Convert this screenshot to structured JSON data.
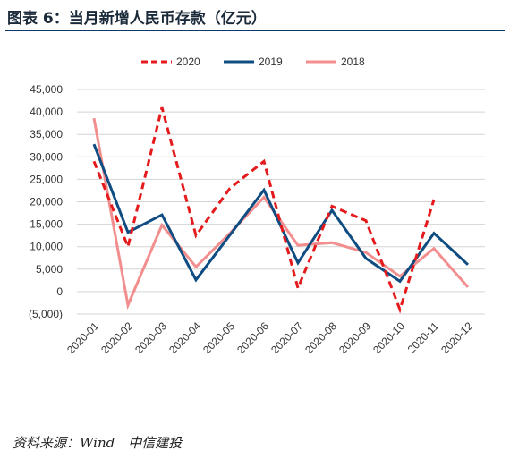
{
  "header": {
    "title": "图表 6：当月新增人民币存款（亿元）"
  },
  "footer": {
    "source": "资料来源：Wind　中信建投"
  },
  "chart_data": {
    "type": "line",
    "categories": [
      "2020-01",
      "2020-02",
      "2020-03",
      "2020-04",
      "2020-05",
      "2020-06",
      "2020-07",
      "2020-08",
      "2020-09",
      "2020-10",
      "2020-11",
      "2020-12"
    ],
    "ylim": [
      -5000,
      45000
    ],
    "yticks": [
      -5000,
      0,
      5000,
      10000,
      15000,
      20000,
      25000,
      30000,
      35000,
      40000,
      45000
    ],
    "ytick_labels": [
      "(5,000)",
      "0",
      "5,000",
      "10,000",
      "15,000",
      "20,000",
      "25,000",
      "30,000",
      "35,000",
      "40,000",
      "45,000"
    ],
    "negative_label_color": "#cc0000",
    "grid": true,
    "legend_position": "top",
    "series": [
      {
        "name": "2020",
        "color": "#e41a1c",
        "dash": true,
        "values": [
          29000,
          10000,
          41000,
          12500,
          23000,
          29000,
          800,
          19000,
          15800,
          -4000,
          20500,
          null
        ]
      },
      {
        "name": "2019",
        "color": "#0f4c81",
        "dash": false,
        "values": [
          32800,
          13200,
          17100,
          2600,
          12600,
          22600,
          6400,
          18100,
          7400,
          2300,
          13000,
          6000
        ]
      },
      {
        "name": "2018",
        "color": "#f28e8e",
        "dash": false,
        "values": [
          38600,
          -3000,
          14800,
          5500,
          13000,
          21000,
          10300,
          10900,
          8700,
          3400,
          9600,
          1000
        ]
      }
    ]
  }
}
